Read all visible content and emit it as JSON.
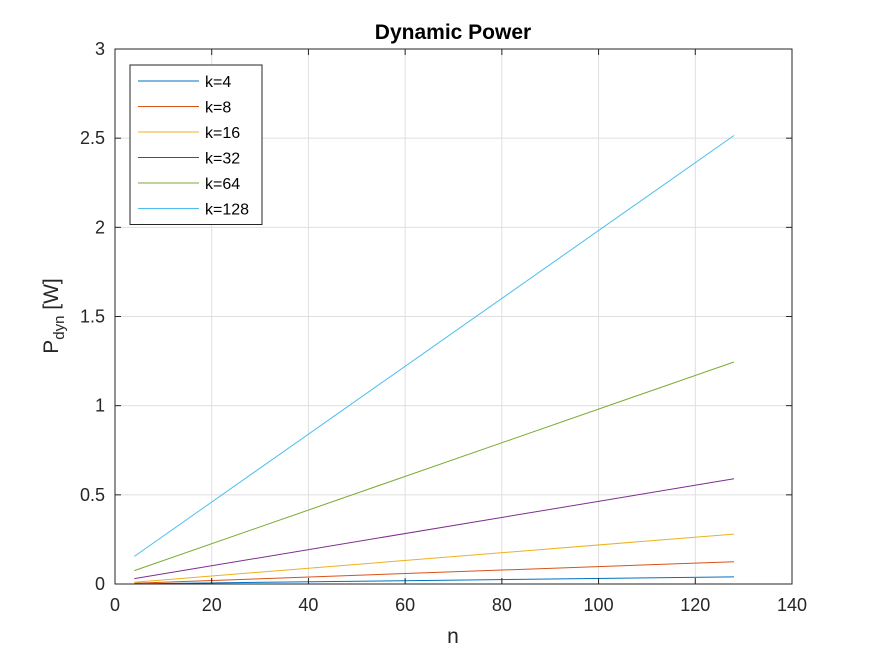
{
  "chart_data": {
    "type": "line",
    "title": "Dynamic Power",
    "xlabel": "n",
    "ylabel": {
      "main": "P",
      "subscript": "dyn",
      "unit": " [W]"
    },
    "xlim": [
      0,
      140
    ],
    "ylim": [
      0,
      3
    ],
    "xticks": [
      0,
      20,
      40,
      60,
      80,
      100,
      120,
      140
    ],
    "yticks": [
      0,
      0.5,
      1,
      1.5,
      2,
      2.5,
      3
    ],
    "ytick_labels": [
      "0",
      "0.5",
      "1",
      "1.5",
      "2",
      "2.5",
      "3"
    ],
    "grid": true,
    "legend_position": "top-left",
    "x": [
      4,
      128
    ],
    "series": [
      {
        "name": "k=4",
        "color": "#0072BD",
        "values": [
          0.001,
          0.04
        ]
      },
      {
        "name": "k=8",
        "color": "#D95319",
        "values": [
          0.004,
          0.125
        ]
      },
      {
        "name": "k=16",
        "color": "#EDB120",
        "values": [
          0.01,
          0.28
        ]
      },
      {
        "name": "k=32",
        "color": "#7E2F8E",
        "values": [
          0.03,
          0.59
        ]
      },
      {
        "name": "k=64",
        "color": "#77AC30",
        "values": [
          0.075,
          1.245
        ]
      },
      {
        "name": "k=128",
        "color": "#4DBEEE",
        "values": [
          0.155,
          2.515
        ]
      }
    ]
  }
}
